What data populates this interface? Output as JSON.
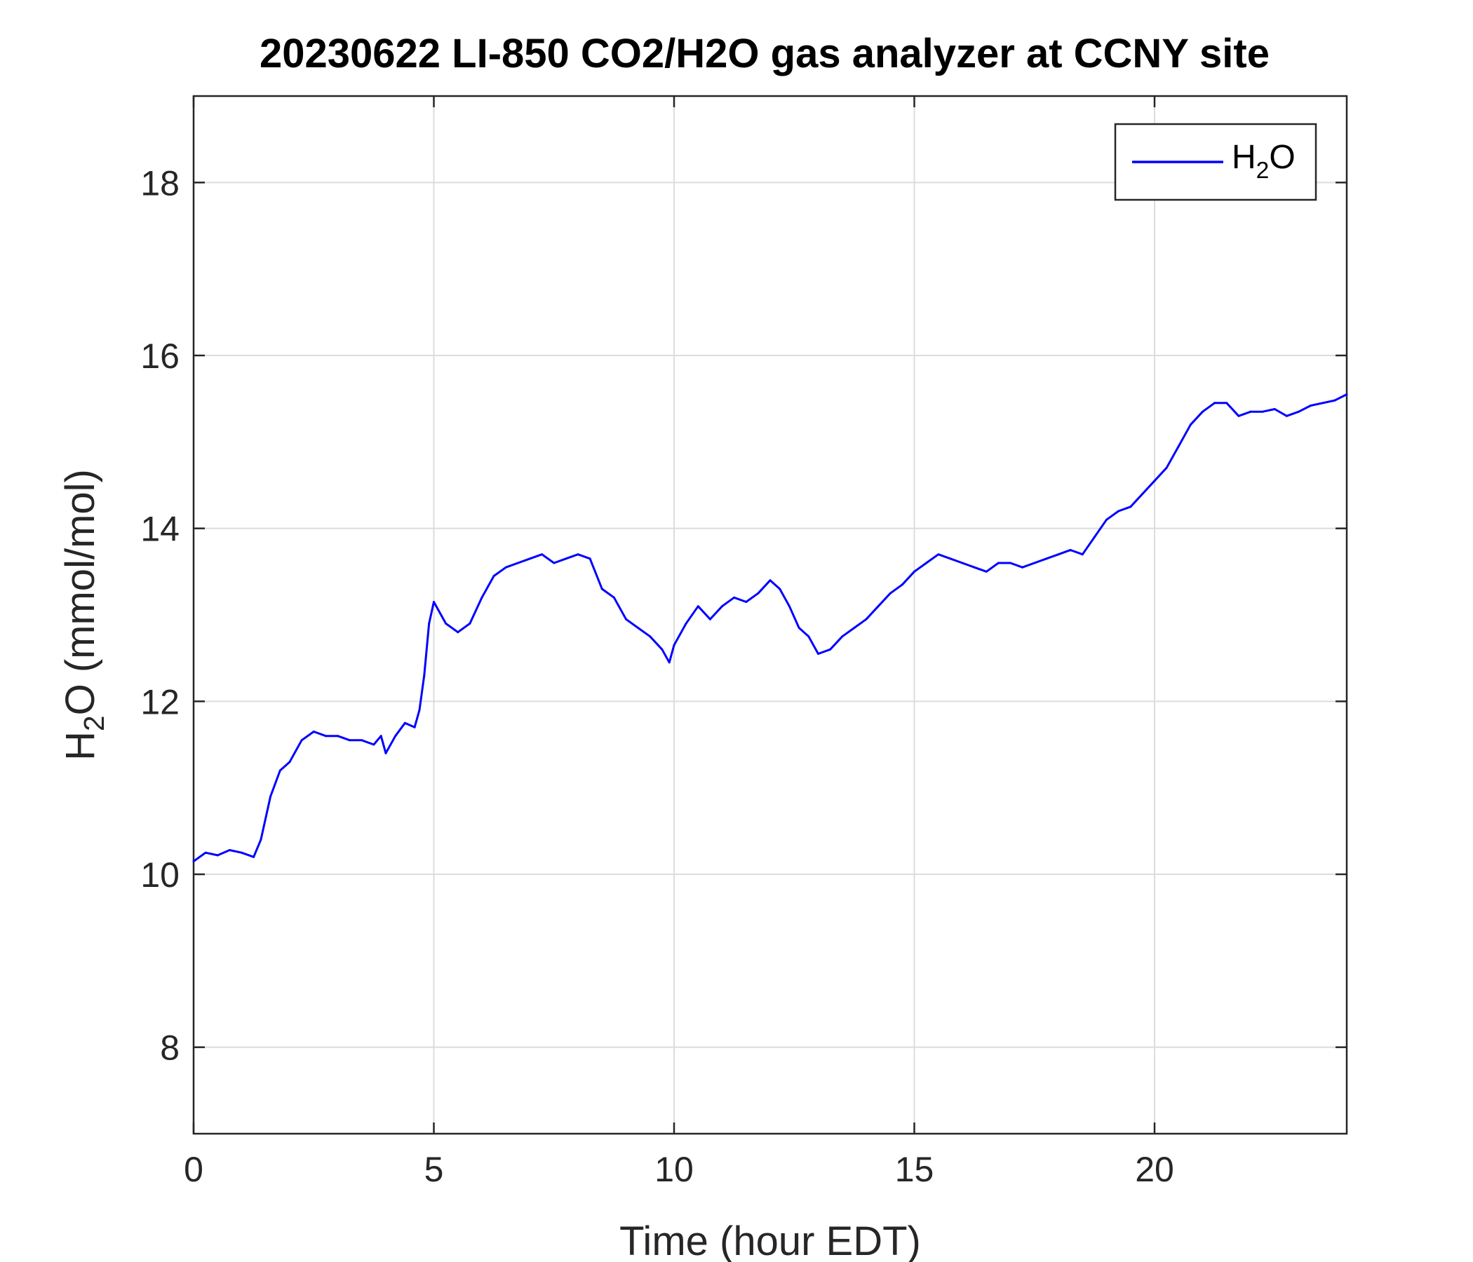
{
  "colors": {
    "series": "#0000ff",
    "axis": "#262626",
    "grid": "#dcdcdc",
    "background": "#ffffff"
  },
  "chart_data": {
    "type": "line",
    "title": "20230622 LI-850 CO2/H2O gas analyzer at CCNY site",
    "xlabel": "Time (hour EDT)",
    "ylabel": {
      "base": "H",
      "sub": "2",
      "rest": "O (mmol/mol)"
    },
    "xlim": [
      0,
      24
    ],
    "ylim": [
      7,
      19
    ],
    "xticks": [
      0,
      5,
      10,
      15,
      20
    ],
    "yticks": [
      8,
      10,
      12,
      14,
      16,
      18
    ],
    "grid": true,
    "legend_position": "top-right",
    "series": [
      {
        "name": {
          "base": "H",
          "sub": "2",
          "rest": "O"
        },
        "color": "#0000ff",
        "x": [
          0,
          0.25,
          0.5,
          0.75,
          1.0,
          1.25,
          1.4,
          1.6,
          1.8,
          2.0,
          2.25,
          2.5,
          2.75,
          3.0,
          3.25,
          3.5,
          3.75,
          3.9,
          4.0,
          4.2,
          4.4,
          4.6,
          4.7,
          4.8,
          4.9,
          5.0,
          5.25,
          5.5,
          5.75,
          6.0,
          6.25,
          6.5,
          6.75,
          7.0,
          7.25,
          7.5,
          7.75,
          8.0,
          8.25,
          8.5,
          8.75,
          9.0,
          9.25,
          9.5,
          9.75,
          9.9,
          10.0,
          10.25,
          10.5,
          10.75,
          11.0,
          11.25,
          11.5,
          11.75,
          12.0,
          12.2,
          12.4,
          12.6,
          12.8,
          13.0,
          13.25,
          13.5,
          13.75,
          14.0,
          14.25,
          14.5,
          14.75,
          15.0,
          15.25,
          15.5,
          15.75,
          16.0,
          16.25,
          16.5,
          16.75,
          17.0,
          17.25,
          17.5,
          17.75,
          18.0,
          18.25,
          18.5,
          18.75,
          19.0,
          19.25,
          19.5,
          19.75,
          20.0,
          20.25,
          20.5,
          20.75,
          21.0,
          21.25,
          21.5,
          21.75,
          22.0,
          22.25,
          22.5,
          22.75,
          23.0,
          23.25,
          23.5,
          23.75,
          24.0
        ],
        "values": [
          10.15,
          10.25,
          10.22,
          10.28,
          10.25,
          10.2,
          10.4,
          10.9,
          11.2,
          11.3,
          11.55,
          11.65,
          11.6,
          11.6,
          11.55,
          11.55,
          11.5,
          11.6,
          11.4,
          11.6,
          11.75,
          11.7,
          11.9,
          12.3,
          12.9,
          13.15,
          12.9,
          12.8,
          12.9,
          13.2,
          13.45,
          13.55,
          13.6,
          13.65,
          13.7,
          13.6,
          13.65,
          13.7,
          13.65,
          13.3,
          13.2,
          12.95,
          12.85,
          12.75,
          12.6,
          12.45,
          12.65,
          12.9,
          13.1,
          12.95,
          13.1,
          13.2,
          13.15,
          13.25,
          13.4,
          13.3,
          13.1,
          12.85,
          12.75,
          12.55,
          12.6,
          12.75,
          12.85,
          12.95,
          13.1,
          13.25,
          13.35,
          13.5,
          13.6,
          13.7,
          13.65,
          13.6,
          13.55,
          13.5,
          13.6,
          13.6,
          13.55,
          13.6,
          13.65,
          13.7,
          13.75,
          13.7,
          13.9,
          14.1,
          14.2,
          14.25,
          14.4,
          14.55,
          14.7,
          14.95,
          15.2,
          15.35,
          15.45,
          15.45,
          15.3,
          15.35,
          15.35,
          15.38,
          15.3,
          15.35,
          15.42,
          15.45,
          15.48,
          15.55
        ]
      }
    ]
  }
}
